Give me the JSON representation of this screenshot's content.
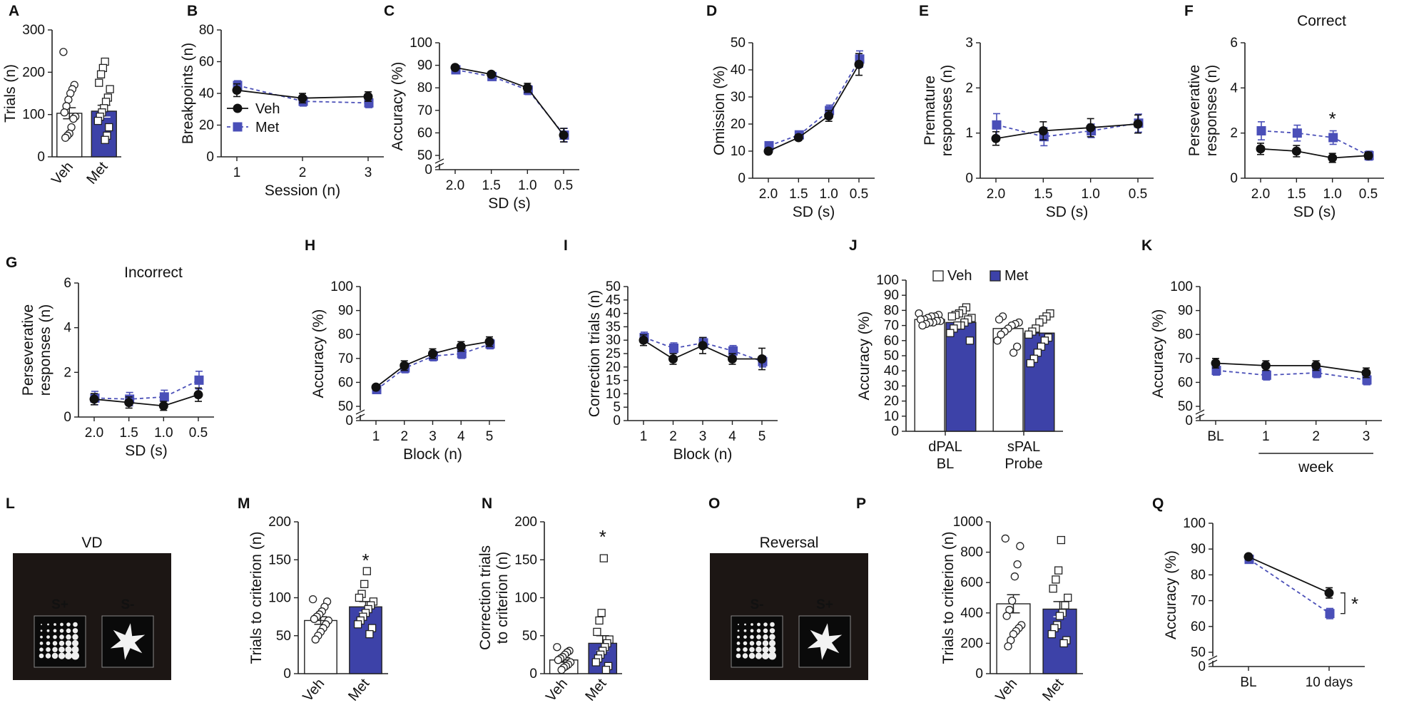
{
  "colors": {
    "veh": "#111111",
    "met": "#4a4fb8",
    "bar_fill": "#3d42a8",
    "axis": "#222222",
    "stim_bg": "#1c1614"
  },
  "chart_data": [
    {
      "id": "A",
      "type": "bar",
      "panel_label": "A",
      "title": "",
      "categories": [
        "Veh",
        "Met"
      ],
      "xlabel": "",
      "ylabel": "Trials (n)",
      "ylim": [
        0,
        300
      ],
      "yticks": [
        0,
        100,
        200,
        300
      ],
      "series": [
        {
          "name": "Veh",
          "mean": 103,
          "sem": 13,
          "points": [
            248,
            170,
            160,
            150,
            135,
            120,
            105,
            95,
            90,
            70,
            55,
            50,
            45
          ]
        },
        {
          "name": "Met",
          "mean": 108,
          "sem": 14,
          "points": [
            225,
            210,
            195,
            175,
            160,
            140,
            130,
            115,
            105,
            95,
            85,
            70,
            50,
            40
          ]
        }
      ],
      "annotations": []
    },
    {
      "id": "B",
      "type": "line",
      "panel_label": "B",
      "title": "",
      "x": [
        "1",
        "2",
        "3"
      ],
      "xlabel": "Session (n)",
      "ylabel": "Breakpoints (n)",
      "ylim": [
        0,
        80
      ],
      "yticks": [
        0,
        20,
        40,
        60,
        80
      ],
      "legend": [
        "Veh",
        "Met"
      ],
      "series": [
        {
          "name": "Veh",
          "values": [
            42,
            37,
            38
          ],
          "sem": [
            4,
            3,
            3
          ]
        },
        {
          "name": "Met",
          "values": [
            45,
            35,
            34
          ],
          "sem": [
            3,
            3,
            3
          ]
        }
      ]
    },
    {
      "id": "C",
      "type": "line",
      "panel_label": "C",
      "title": "",
      "x": [
        "2.0",
        "1.5",
        "1.0",
        "0.5"
      ],
      "xlabel": "SD (s)",
      "ylabel": "Accuracy (%)",
      "ylim": [
        50,
        100
      ],
      "yticks": [
        0,
        50,
        60,
        70,
        80,
        90,
        100
      ],
      "axis_break": true,
      "series": [
        {
          "name": "Veh",
          "values": [
            89,
            86,
            80,
            59
          ],
          "sem": [
            1,
            1,
            2,
            3
          ]
        },
        {
          "name": "Met",
          "values": [
            88,
            85,
            79,
            59
          ],
          "sem": [
            1,
            1,
            2,
            3
          ]
        }
      ]
    },
    {
      "id": "D",
      "type": "line",
      "panel_label": "D",
      "title": "",
      "x": [
        "2.0",
        "1.5",
        "1.0",
        "0.5"
      ],
      "xlabel": "SD (s)",
      "ylabel": "Omission (%)",
      "ylim": [
        0,
        50
      ],
      "yticks": [
        0,
        10,
        20,
        30,
        40,
        50
      ],
      "series": [
        {
          "name": "Veh",
          "values": [
            10,
            15,
            23,
            42
          ],
          "sem": [
            1,
            1,
            2,
            4
          ]
        },
        {
          "name": "Met",
          "values": [
            12,
            16,
            25,
            44
          ],
          "sem": [
            1,
            1,
            2,
            3
          ]
        }
      ]
    },
    {
      "id": "E",
      "type": "line",
      "panel_label": "E",
      "title": "",
      "x": [
        "2.0",
        "1.5",
        "1.0",
        "0.5"
      ],
      "xlabel": "SD (s)",
      "ylabel": "Premature responses (n)",
      "ylim": [
        0,
        3
      ],
      "yticks": [
        0,
        1,
        2,
        3
      ],
      "series": [
        {
          "name": "Veh",
          "values": [
            0.88,
            1.05,
            1.12,
            1.2
          ],
          "sem": [
            0.15,
            0.2,
            0.2,
            0.2
          ]
        },
        {
          "name": "Met",
          "values": [
            1.18,
            0.92,
            1.05,
            1.22
          ],
          "sem": [
            0.25,
            0.2,
            0.15,
            0.2
          ]
        }
      ]
    },
    {
      "id": "F",
      "type": "line",
      "panel_label": "F",
      "title": "Correct",
      "x": [
        "2.0",
        "1.5",
        "1.0",
        "0.5"
      ],
      "xlabel": "SD (s)",
      "ylabel": "Perseverative responses (n)",
      "ylim": [
        0,
        6
      ],
      "yticks": [
        0,
        2,
        4,
        6
      ],
      "series": [
        {
          "name": "Veh",
          "values": [
            1.3,
            1.2,
            0.9,
            1.0
          ],
          "sem": [
            0.25,
            0.25,
            0.2,
            0.15
          ]
        },
        {
          "name": "Met",
          "values": [
            2.1,
            2.0,
            1.8,
            1.0
          ],
          "sem": [
            0.4,
            0.35,
            0.3,
            0.2
          ]
        }
      ],
      "annotations": [
        {
          "text": "*",
          "x": "1.0"
        }
      ]
    },
    {
      "id": "G",
      "type": "line",
      "panel_label": "G",
      "title": "Incorrect",
      "x": [
        "2.0",
        "1.5",
        "1.0",
        "0.5"
      ],
      "xlabel": "SD (s)",
      "ylabel": "Perseverative responses (n)",
      "ylim": [
        0,
        6
      ],
      "yticks": [
        0,
        2,
        4,
        6
      ],
      "series": [
        {
          "name": "Veh",
          "values": [
            0.8,
            0.65,
            0.5,
            1.0
          ],
          "sem": [
            0.25,
            0.25,
            0.2,
            0.3
          ]
        },
        {
          "name": "Met",
          "values": [
            0.85,
            0.8,
            0.9,
            1.65
          ],
          "sem": [
            0.3,
            0.3,
            0.3,
            0.4
          ]
        }
      ]
    },
    {
      "id": "H",
      "type": "line",
      "panel_label": "H",
      "title": "",
      "x": [
        "1",
        "2",
        "3",
        "4",
        "5"
      ],
      "xlabel": "Block (n)",
      "ylabel": "Accuracy (%)",
      "ylim": [
        50,
        100
      ],
      "yticks": [
        0,
        50,
        60,
        70,
        80,
        90,
        100
      ],
      "axis_break": true,
      "series": [
        {
          "name": "Veh",
          "values": [
            58,
            67,
            72,
            75,
            77
          ],
          "sem": [
            1,
            2,
            2,
            2,
            2
          ]
        },
        {
          "name": "Met",
          "values": [
            57,
            66,
            71,
            72,
            76
          ],
          "sem": [
            1,
            2,
            2,
            2,
            2
          ]
        }
      ]
    },
    {
      "id": "I",
      "type": "line",
      "panel_label": "I",
      "title": "",
      "x": [
        "1",
        "2",
        "3",
        "4",
        "5"
      ],
      "xlabel": "Block (n)",
      "ylabel": "Correction trials (n)",
      "ylim": [
        0,
        50
      ],
      "yticks": [
        0,
        5,
        10,
        15,
        20,
        25,
        30,
        35,
        40,
        45,
        50
      ],
      "series": [
        {
          "name": "Veh",
          "values": [
            30,
            23,
            28,
            23,
            23
          ],
          "sem": [
            2,
            2,
            3,
            2,
            4
          ]
        },
        {
          "name": "Met",
          "values": [
            31,
            27,
            29,
            26,
            22
          ],
          "sem": [
            2,
            2,
            2,
            2,
            2
          ]
        }
      ]
    },
    {
      "id": "J",
      "type": "bar",
      "panel_label": "J",
      "title": "",
      "categories": [
        "dPAL\nBL",
        "sPAL\nProbe"
      ],
      "xlabel": "",
      "ylabel": "Accuracy (%)",
      "ylim": [
        0,
        100
      ],
      "yticks": [
        0,
        10,
        20,
        30,
        40,
        50,
        60,
        70,
        80,
        90,
        100
      ],
      "legend": [
        "Veh",
        "Met"
      ],
      "groups": [
        {
          "name": "dPAL BL",
          "veh": {
            "mean": 74,
            "sem": 1,
            "points": [
              78,
              77,
              76,
              76,
              75,
              74,
              74,
              73,
              73,
              72,
              72,
              71,
              70
            ]
          },
          "met": {
            "mean": 72,
            "sem": 2,
            "points": [
              82,
              80,
              78,
              77,
              76,
              75,
              74,
              72,
              70,
              70,
              68,
              65,
              60
            ]
          }
        },
        {
          "name": "sPAL Probe",
          "veh": {
            "mean": 68,
            "sem": 2,
            "points": [
              76,
              74,
              72,
              71,
              70,
              68,
              66,
              64,
              60,
              56,
              52
            ]
          },
          "met": {
            "mean": 65,
            "sem": 2,
            "points": [
              78,
              76,
              74,
              72,
              68,
              66,
              64,
              62,
              60,
              56,
              52,
              48,
              45
            ]
          }
        }
      ]
    },
    {
      "id": "K",
      "type": "line",
      "panel_label": "K",
      "title": "",
      "x": [
        "BL",
        "1",
        "2",
        "3"
      ],
      "xlabel": "week",
      "ylabel": "Accuracy (%)",
      "ylim": [
        50,
        100
      ],
      "yticks": [
        0,
        50,
        60,
        70,
        80,
        90,
        100
      ],
      "axis_break": true,
      "series": [
        {
          "name": "Veh",
          "values": [
            68,
            67,
            67,
            64
          ],
          "sem": [
            2,
            2,
            2,
            2
          ]
        },
        {
          "name": "Met",
          "values": [
            65,
            63,
            64,
            61
          ],
          "sem": [
            2,
            2,
            2,
            2
          ]
        }
      ]
    },
    {
      "id": "M",
      "type": "bar",
      "panel_label": "M",
      "title": "",
      "categories": [
        "Veh",
        "Met"
      ],
      "xlabel": "",
      "ylabel": "Trials to criterion (n)",
      "ylim": [
        0,
        200
      ],
      "yticks": [
        0,
        50,
        100,
        150,
        200
      ],
      "series": [
        {
          "name": "Veh",
          "mean": 70,
          "sem": 5,
          "points": [
            98,
            95,
            88,
            82,
            78,
            75,
            72,
            70,
            65,
            60,
            55,
            50,
            45
          ]
        },
        {
          "name": "Met",
          "mean": 88,
          "sem": 7,
          "points": [
            135,
            118,
            105,
            100,
            95,
            90,
            85,
            80,
            75,
            70,
            65,
            60,
            52
          ]
        }
      ],
      "annotations": [
        {
          "text": "*",
          "x": "Met"
        }
      ]
    },
    {
      "id": "N",
      "type": "bar",
      "panel_label": "N",
      "title": "",
      "categories": [
        "Veh",
        "Met"
      ],
      "xlabel": "",
      "ylabel": "Correction trials to criterion (n)",
      "ylim": [
        0,
        200
      ],
      "yticks": [
        0,
        50,
        100,
        150,
        200
      ],
      "series": [
        {
          "name": "Veh",
          "mean": 18,
          "sem": 3,
          "points": [
            35,
            30,
            28,
            25,
            22,
            20,
            18,
            15,
            12,
            10,
            8,
            5
          ]
        },
        {
          "name": "Met",
          "mean": 40,
          "sem": 10,
          "points": [
            152,
            80,
            70,
            55,
            45,
            40,
            35,
            30,
            25,
            20,
            15,
            10,
            5
          ]
        }
      ],
      "annotations": [
        {
          "text": "*",
          "x": "Met"
        }
      ]
    },
    {
      "id": "P",
      "type": "bar",
      "panel_label": "P",
      "title": "",
      "categories": [
        "Veh",
        "Met"
      ],
      "xlabel": "",
      "ylabel": "Trials to criterion (n)",
      "ylim": [
        0,
        1000
      ],
      "yticks": [
        0,
        200,
        400,
        600,
        800,
        1000
      ],
      "series": [
        {
          "name": "Veh",
          "mean": 460,
          "sem": 60,
          "points": [
            890,
            840,
            720,
            640,
            480,
            420,
            380,
            320,
            300,
            280,
            260,
            220,
            180
          ]
        },
        {
          "name": "Met",
          "mean": 425,
          "sem": 50,
          "points": [
            880,
            680,
            620,
            560,
            500,
            450,
            400,
            380,
            320,
            300,
            260,
            220,
            200
          ]
        }
      ]
    },
    {
      "id": "Q",
      "type": "line",
      "panel_label": "Q",
      "title": "",
      "x": [
        "BL",
        "10 days"
      ],
      "xlabel": "",
      "ylabel": "Accuracy (%)",
      "ylim": [
        50,
        100
      ],
      "yticks": [
        0,
        50,
        60,
        70,
        80,
        90,
        100
      ],
      "axis_break": true,
      "series": [
        {
          "name": "Veh",
          "values": [
            87,
            73
          ],
          "sem": [
            1,
            2
          ]
        },
        {
          "name": "Met",
          "values": [
            86,
            65
          ],
          "sem": [
            1,
            2
          ]
        }
      ],
      "annotations": [
        {
          "text": "*",
          "x": "10 days"
        }
      ]
    }
  ],
  "stimuli": [
    {
      "id": "L",
      "panel_label": "L",
      "title": "VD",
      "left_label": "S+",
      "right_label": "S-"
    },
    {
      "id": "O",
      "panel_label": "O",
      "title": "Reversal",
      "left_label": "S-",
      "right_label": "S+"
    }
  ]
}
